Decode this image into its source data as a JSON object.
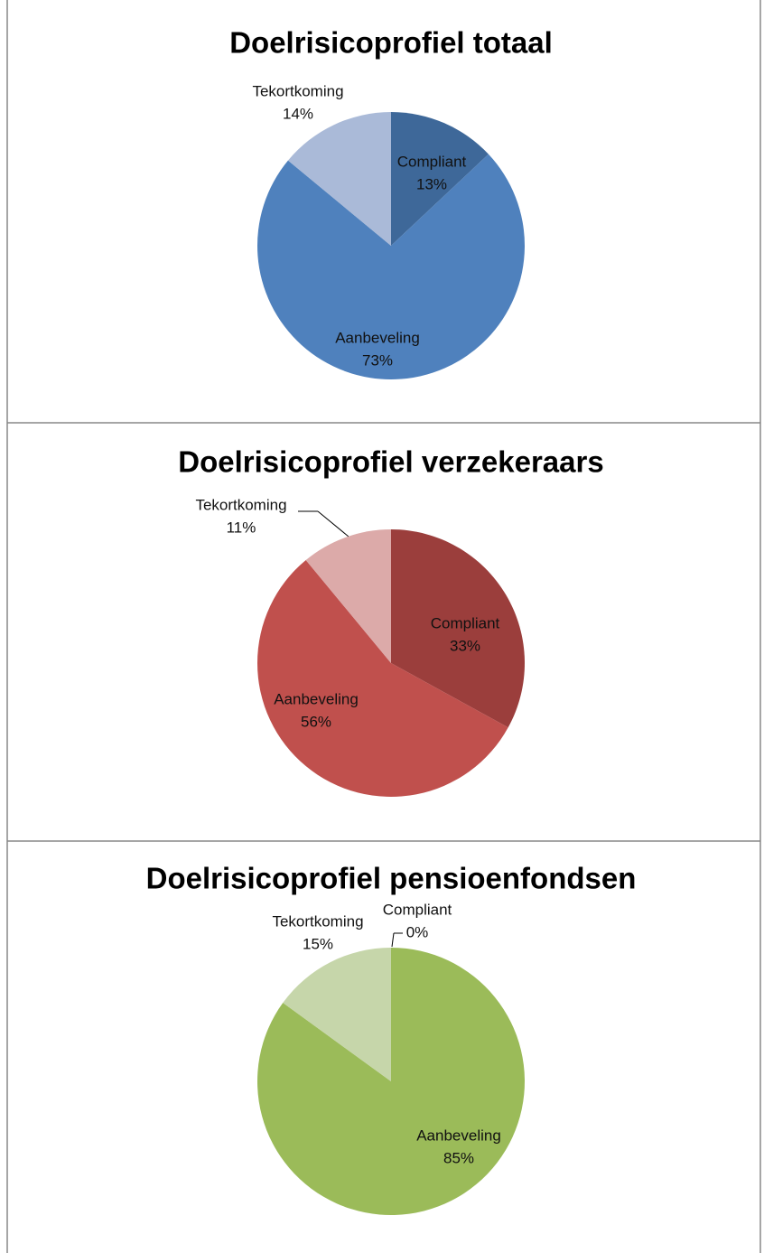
{
  "chart_data": [
    {
      "type": "pie",
      "title": "Doelrisicoprofiel totaal",
      "categories": [
        "Compliant",
        "Aanbeveling",
        "Tekortkoming"
      ],
      "values": [
        13,
        73,
        14
      ],
      "value_labels": [
        "13%",
        "73%",
        "14%"
      ],
      "colors": [
        "#3e6899",
        "#4f81bd",
        "#aabad8"
      ]
    },
    {
      "type": "pie",
      "title": "Doelrisicoprofiel verzekeraars",
      "categories": [
        "Compliant",
        "Aanbeveling",
        "Tekortkoming"
      ],
      "values": [
        33,
        56,
        11
      ],
      "value_labels": [
        "33%",
        "56%",
        "11%"
      ],
      "colors": [
        "#9b3e3c",
        "#c0504d",
        "#dcaaa9"
      ]
    },
    {
      "type": "pie",
      "title": "Doelrisicoprofiel pensioenfondsen",
      "categories": [
        "Compliant",
        "Aanbeveling",
        "Tekortkoming"
      ],
      "values": [
        0,
        85,
        15
      ],
      "value_labels": [
        "0%",
        "85%",
        "15%"
      ],
      "colors": [
        "#7a9a3c",
        "#9bbb59",
        "#c6d6aa"
      ]
    }
  ]
}
